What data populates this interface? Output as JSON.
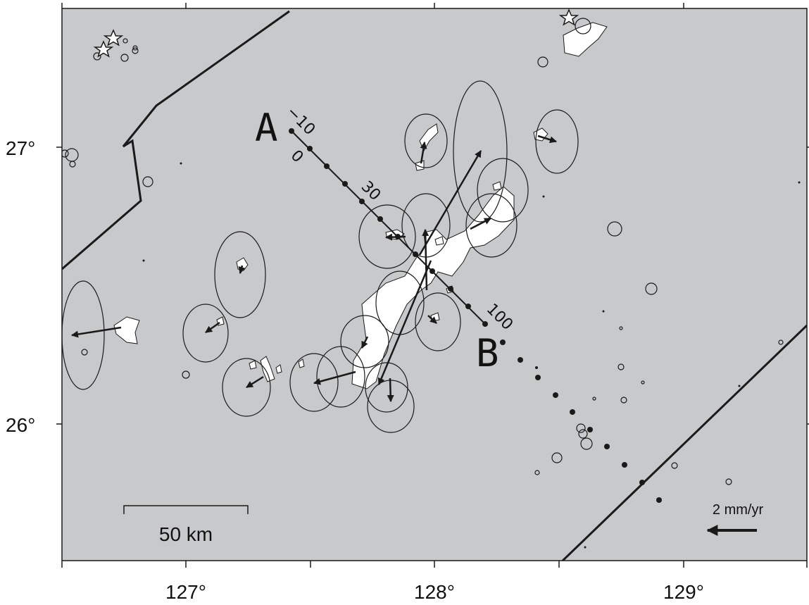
{
  "map": {
    "background_color": "#c8c9cb",
    "land_color": "#ffffff",
    "line_color": "#1a1a1a"
  },
  "axes": {
    "lon_ticks": [
      "127°",
      "128°",
      "129°"
    ],
    "lat_ticks": [
      "27°",
      "26°"
    ]
  },
  "profile": {
    "start_label": "A",
    "end_label": "B",
    "distance_labels": [
      "−10",
      "0",
      "30",
      "100"
    ]
  },
  "scale_bar": {
    "label": "50 km"
  },
  "velocity_legend": {
    "label": "2 mm/yr"
  }
}
